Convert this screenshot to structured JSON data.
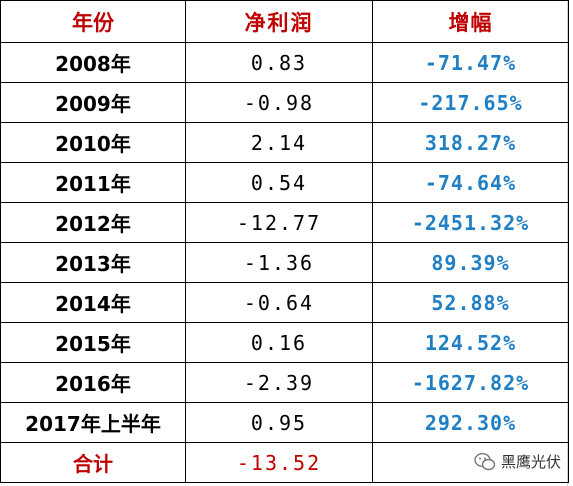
{
  "table": {
    "header": [
      "年份",
      "净利润",
      "增幅"
    ],
    "rows": [
      [
        "2008年",
        "0.83",
        "-71.47%"
      ],
      [
        "2009年",
        "-0.98",
        "-217.65%"
      ],
      [
        "2010年",
        "2.14",
        "318.27%"
      ],
      [
        "2011年",
        "0.54",
        "-74.64%"
      ],
      [
        "2012年",
        "-12.77",
        "-2451.32%"
      ],
      [
        "2013年",
        "-1.36",
        "89.39%"
      ],
      [
        "2014年",
        "-0.64",
        "52.88%"
      ],
      [
        "2015年",
        "0.16",
        "124.52%"
      ],
      [
        "2016年",
        "-2.39",
        "-1627.82%"
      ],
      [
        "2017年上半年",
        "0.95",
        "292.30%"
      ]
    ],
    "total": [
      "合计",
      "-13.52"
    ]
  },
  "watermark": "黑鹰光伏"
}
